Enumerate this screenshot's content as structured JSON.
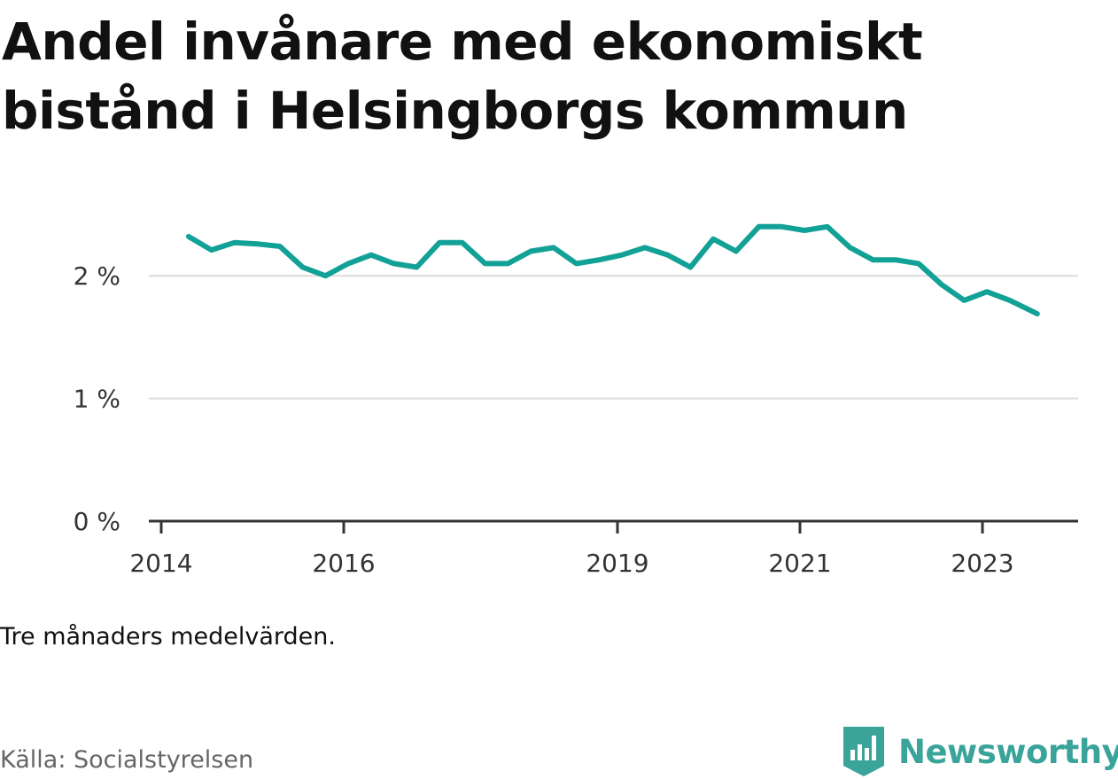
{
  "title": "Andel invånare med ekonomiskt bistånd i Helsingborgs kommun",
  "note": "Tre månaders medelvärden.",
  "source": "Källa: Socialstyrelsen",
  "brand": {
    "name": "Newsworthy",
    "icon": "newsworthy-logo-icon",
    "color": "#3aa39a"
  },
  "chart_data": {
    "type": "line",
    "title": "Andel invånare med ekonomiskt bistånd i Helsingborgs kommun",
    "xlabel": "",
    "ylabel": "",
    "ylim": [
      0,
      2.5
    ],
    "xlim": [
      2013.97,
      2024.0
    ],
    "yticks": [
      {
        "value": 0,
        "label": "0 %"
      },
      {
        "value": 1,
        "label": "1 %"
      },
      {
        "value": 2,
        "label": "2 %"
      }
    ],
    "xticks": [
      {
        "value": 2014,
        "label": "2014"
      },
      {
        "value": 2016,
        "label": "2016"
      },
      {
        "value": 2019,
        "label": "2019"
      },
      {
        "value": 2021,
        "label": "2021"
      },
      {
        "value": 2023,
        "label": "2023"
      }
    ],
    "grid": true,
    "legend": "none",
    "line_color": "#12a196",
    "series": [
      {
        "x": [
          2014.3,
          2014.55,
          2014.8,
          2015.05,
          2015.3,
          2015.55,
          2015.8,
          2016.05,
          2016.3,
          2016.55,
          2016.8,
          2017.05,
          2017.3,
          2017.55,
          2017.8,
          2018.05,
          2018.3,
          2018.55,
          2018.8,
          2019.05,
          2019.3,
          2019.55,
          2019.8,
          2020.05,
          2020.3,
          2020.55,
          2020.8,
          2021.05,
          2021.3,
          2021.55,
          2021.8,
          2022.05,
          2022.3,
          2022.55,
          2022.8,
          2023.05,
          2023.3,
          2023.6
        ],
        "values": [
          2.32,
          2.21,
          2.27,
          2.26,
          2.24,
          2.07,
          2.0,
          2.1,
          2.17,
          2.1,
          2.07,
          2.27,
          2.27,
          2.1,
          2.1,
          2.2,
          2.23,
          2.1,
          2.13,
          2.17,
          2.23,
          2.17,
          2.07,
          2.3,
          2.2,
          2.4,
          2.4,
          2.37,
          2.4,
          2.23,
          2.13,
          2.13,
          2.1,
          1.93,
          1.8,
          1.87,
          1.8,
          1.69
        ]
      }
    ]
  }
}
